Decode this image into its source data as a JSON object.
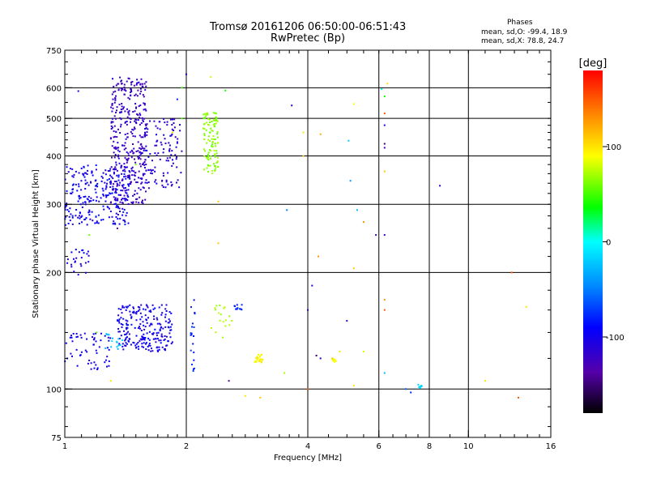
{
  "header": {
    "title_line1": "Tromsø 20161206 06:50:00-06:51:43",
    "title_line2": "RwPretec (Bp)",
    "stats_title": "Phases",
    "stats_o": "mean, sd,O: -99.4, 18.9",
    "stats_x": "mean, sd,X:  78.8, 24.7"
  },
  "chart_data": {
    "type": "scatter",
    "xlabel": "Frequency [MHz]",
    "ylabel": "Stationary phase Virtual Height [km]",
    "x_scale": "log2",
    "y_scale": "log",
    "xlim": [
      1,
      16
    ],
    "ylim": [
      75,
      750
    ],
    "x_ticks": [
      1,
      2,
      4,
      6,
      8,
      10,
      16
    ],
    "y_ticks": [
      75,
      100,
      200,
      300,
      400,
      500,
      600,
      750
    ],
    "grid": true,
    "colorbar": {
      "label": "[deg]",
      "ticks": [
        100,
        0,
        -100
      ],
      "range": [
        -180,
        180
      ],
      "colormap": "rainbow"
    },
    "clusters": [
      {
        "f": [
          1.0,
          1.45
        ],
        "h": [
          265,
          380
        ],
        "phase": [
          -115,
          -80
        ],
        "n": 260
      },
      {
        "f": [
          1.3,
          1.6
        ],
        "h": [
          300,
          640
        ],
        "phase": [
          -130,
          -110
        ],
        "n": 360
      },
      {
        "f": [
          1.55,
          1.95
        ],
        "h": [
          330,
          500
        ],
        "phase": [
          -125,
          -100
        ],
        "n": 120
      },
      {
        "f": [
          2.2,
          2.4
        ],
        "h": [
          360,
          520
        ],
        "phase": [
          55,
          75
        ],
        "n": 110
      },
      {
        "f": [
          1.0,
          1.15
        ],
        "h": [
          195,
          230
        ],
        "phase": [
          -110,
          -90
        ],
        "n": 25
      },
      {
        "f": [
          1.0,
          1.3
        ],
        "h": [
          112,
          140
        ],
        "phase": [
          -110,
          -90
        ],
        "n": 60
      },
      {
        "f": [
          1.35,
          1.85
        ],
        "h": [
          125,
          165
        ],
        "phase": [
          -115,
          -85
        ],
        "n": 230
      },
      {
        "f": [
          1.25,
          1.4
        ],
        "h": [
          125,
          140
        ],
        "phase": [
          -30,
          -10
        ],
        "n": 15
      },
      {
        "f": [
          2.05,
          2.1
        ],
        "h": [
          110,
          170
        ],
        "phase": [
          -90,
          -70
        ],
        "n": 20
      },
      {
        "f": [
          2.3,
          2.6
        ],
        "h": [
          135,
          165
        ],
        "phase": [
          65,
          80
        ],
        "n": 18
      },
      {
        "f": [
          2.6,
          2.75
        ],
        "h": [
          160,
          166
        ],
        "phase": [
          -85,
          -75
        ],
        "n": 12
      },
      {
        "f": [
          2.95,
          3.1
        ],
        "h": [
          117,
          123
        ],
        "phase": [
          85,
          100
        ],
        "n": 25
      },
      {
        "f": [
          4.6,
          4.7
        ],
        "h": [
          117,
          120
        ],
        "phase": [
          85,
          95
        ],
        "n": 8
      },
      {
        "f": [
          7.5,
          7.7
        ],
        "h": [
          100,
          103
        ],
        "phase": [
          -20,
          -10
        ],
        "n": 8
      }
    ],
    "scattered_points": [
      [
        1.08,
        588,
        -110
      ],
      [
        1.85,
        460,
        110
      ],
      [
        1.9,
        560,
        -80
      ],
      [
        1.95,
        500,
        50
      ],
      [
        2.0,
        650,
        -100
      ],
      [
        1.2,
        140,
        60
      ],
      [
        1.15,
        250,
        60
      ],
      [
        1.35,
        260,
        -140
      ],
      [
        1.3,
        105,
        100
      ],
      [
        1.5,
        380,
        60
      ],
      [
        1.95,
        600,
        50
      ],
      [
        2.4,
        305,
        110
      ],
      [
        2.4,
        238,
        110
      ],
      [
        2.55,
        105,
        -140
      ],
      [
        2.3,
        640,
        80
      ],
      [
        2.5,
        590,
        40
      ],
      [
        2.8,
        96,
        100
      ],
      [
        3.05,
        95,
        110
      ],
      [
        3.5,
        110,
        70
      ],
      [
        3.65,
        540,
        -110
      ],
      [
        3.55,
        290,
        -50
      ],
      [
        3.9,
        460,
        100
      ],
      [
        3.9,
        400,
        110
      ],
      [
        4.0,
        100,
        150
      ],
      [
        4.0,
        160,
        -120
      ],
      [
        4.1,
        185,
        -110
      ],
      [
        4.2,
        122,
        -150
      ],
      [
        4.3,
        120,
        -110
      ],
      [
        4.25,
        220,
        130
      ],
      [
        4.3,
        455,
        120
      ],
      [
        4.6,
        120,
        110
      ],
      [
        4.8,
        125,
        100
      ],
      [
        5.0,
        150,
        -120
      ],
      [
        5.05,
        438,
        -20
      ],
      [
        5.1,
        345,
        -40
      ],
      [
        5.2,
        545,
        90
      ],
      [
        5.2,
        102,
        100
      ],
      [
        5.2,
        205,
        110
      ],
      [
        5.3,
        290,
        -30
      ],
      [
        5.5,
        270,
        130
      ],
      [
        5.5,
        125,
        80
      ],
      [
        5.9,
        250,
        -130
      ],
      [
        6.1,
        595,
        0
      ],
      [
        6.2,
        570,
        40
      ],
      [
        6.2,
        515,
        150
      ],
      [
        6.2,
        480,
        -110
      ],
      [
        6.2,
        430,
        -150
      ],
      [
        6.2,
        420,
        -120
      ],
      [
        6.2,
        365,
        110
      ],
      [
        6.2,
        250,
        -120
      ],
      [
        6.2,
        170,
        130
      ],
      [
        6.2,
        160,
        150
      ],
      [
        6.2,
        110,
        -30
      ],
      [
        6.3,
        615,
        100
      ],
      [
        7.0,
        100,
        -60
      ],
      [
        7.2,
        98,
        -80
      ],
      [
        8.5,
        335,
        -120
      ],
      [
        11.0,
        105,
        100
      ],
      [
        12.8,
        200,
        150
      ],
      [
        13.3,
        95,
        150
      ],
      [
        13.9,
        163,
        100
      ]
    ]
  }
}
